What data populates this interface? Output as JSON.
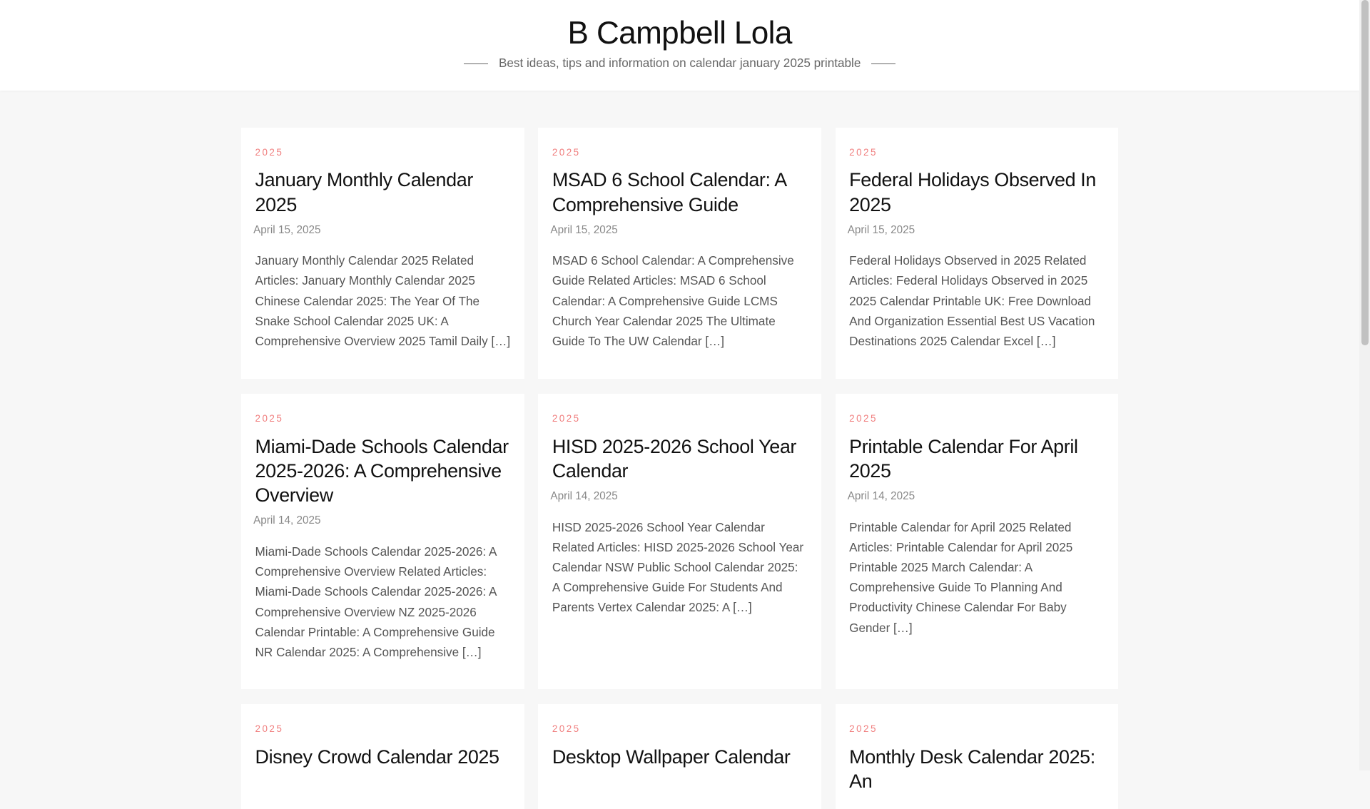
{
  "header": {
    "title": "B Campbell Lola",
    "tagline": "Best ideas, tips and information on calendar january 2025 printable"
  },
  "colors": {
    "category": "#f07e7e",
    "background": "#f7f7f7"
  },
  "posts": [
    {
      "category": "2025",
      "title": "January Monthly Calendar 2025",
      "date": "April 15, 2025",
      "excerpt": "January Monthly Calendar 2025 Related Articles: January Monthly Calendar 2025 Chinese Calendar 2025: The Year Of The Snake School Calendar 2025 UK: A Comprehensive Overview 2025 Tamil Daily […]"
    },
    {
      "category": "2025",
      "title": "MSAD 6 School Calendar: A Comprehensive Guide",
      "date": "April 15, 2025",
      "excerpt": "MSAD 6 School Calendar: A Comprehensive Guide Related Articles: MSAD 6 School Calendar: A Comprehensive Guide LCMS Church Year Calendar 2025 The Ultimate Guide To The UW Calendar […]"
    },
    {
      "category": "2025",
      "title": "Federal Holidays Observed In 2025",
      "date": "April 15, 2025",
      "excerpt": "Federal Holidays Observed in 2025 Related Articles: Federal Holidays Observed in 2025 2025 Calendar Printable UK: Free Download And Organization Essential Best US Vacation Destinations 2025 Calendar Excel […]"
    },
    {
      "category": "2025",
      "title": "Miami-Dade Schools Calendar 2025-2026: A Comprehensive Overview",
      "date": "April 14, 2025",
      "excerpt": "Miami-Dade Schools Calendar 2025-2026: A Comprehensive Overview Related Articles: Miami-Dade Schools Calendar 2025-2026: A Comprehensive Overview NZ 2025-2026 Calendar Printable: A Comprehensive Guide NR Calendar 2025: A Comprehensive […]"
    },
    {
      "category": "2025",
      "title": "HISD 2025-2026 School Year Calendar",
      "date": "April 14, 2025",
      "excerpt": "HISD 2025-2026 School Year Calendar Related Articles: HISD 2025-2026 School Year Calendar NSW Public School Calendar 2025: A Comprehensive Guide For Students And Parents Vertex Calendar 2025: A […]"
    },
    {
      "category": "2025",
      "title": "Printable Calendar For April 2025",
      "date": "April 14, 2025",
      "excerpt": "Printable Calendar for April 2025 Related Articles: Printable Calendar for April 2025 Printable 2025 March Calendar: A Comprehensive Guide To Planning And Productivity Chinese Calendar For Baby Gender […]"
    },
    {
      "category": "2025",
      "title": "Disney Crowd Calendar 2025",
      "date": "",
      "excerpt": ""
    },
    {
      "category": "2025",
      "title": "Desktop Wallpaper Calendar",
      "date": "",
      "excerpt": ""
    },
    {
      "category": "2025",
      "title": "Monthly Desk Calendar 2025: An",
      "date": "",
      "excerpt": ""
    }
  ]
}
